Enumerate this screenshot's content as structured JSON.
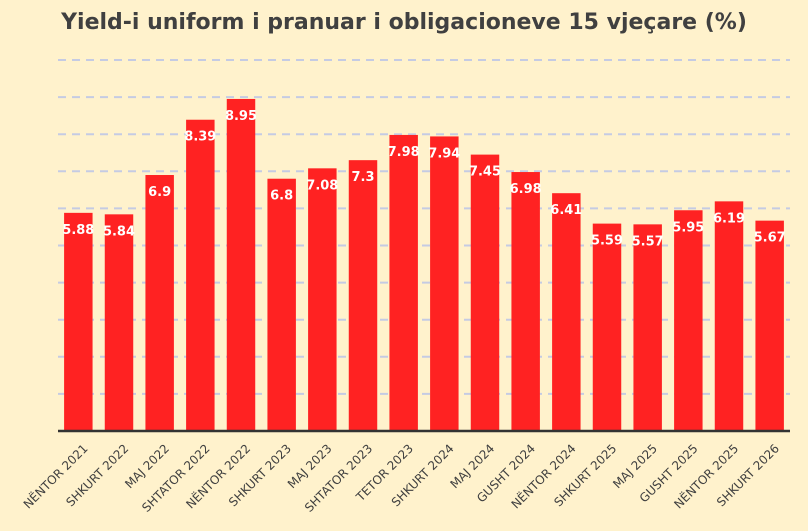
{
  "chart_data": {
    "type": "bar",
    "title": "Yield-i uniform i pranuar i obligacioneve 15 vjeçare (%)",
    "categories": [
      "NËNTOR 2021",
      "SHKURT 2022",
      "MAJ 2022",
      "SHTATOR 2022",
      "NËNTOR 2022",
      "SHKURT 2023",
      "MAJ 2023",
      "SHTATOR 2023",
      "TETOR 2023",
      "SHKURT 2024",
      "MAJ 2024",
      "GUSHT 2024",
      "NËNTOR 2024",
      "SHKURT 2025",
      "MAJ 2025",
      "GUSHT 2025",
      "NËNTOR 2025",
      "SHKURT 2026"
    ],
    "values": [
      5.88,
      5.84,
      6.9,
      8.39,
      8.95,
      6.8,
      7.08,
      7.3,
      7.98,
      7.94,
      7.45,
      6.98,
      6.41,
      5.59,
      5.57,
      5.95,
      6.19,
      5.67
    ],
    "xlabel": "",
    "ylabel": "",
    "ylim": [
      0,
      10
    ],
    "grid": true,
    "bar_color": "#ff2222",
    "label_color": "#ffffff",
    "background_color": "#fff2cc",
    "gridline_color": "#c5cbe3"
  }
}
